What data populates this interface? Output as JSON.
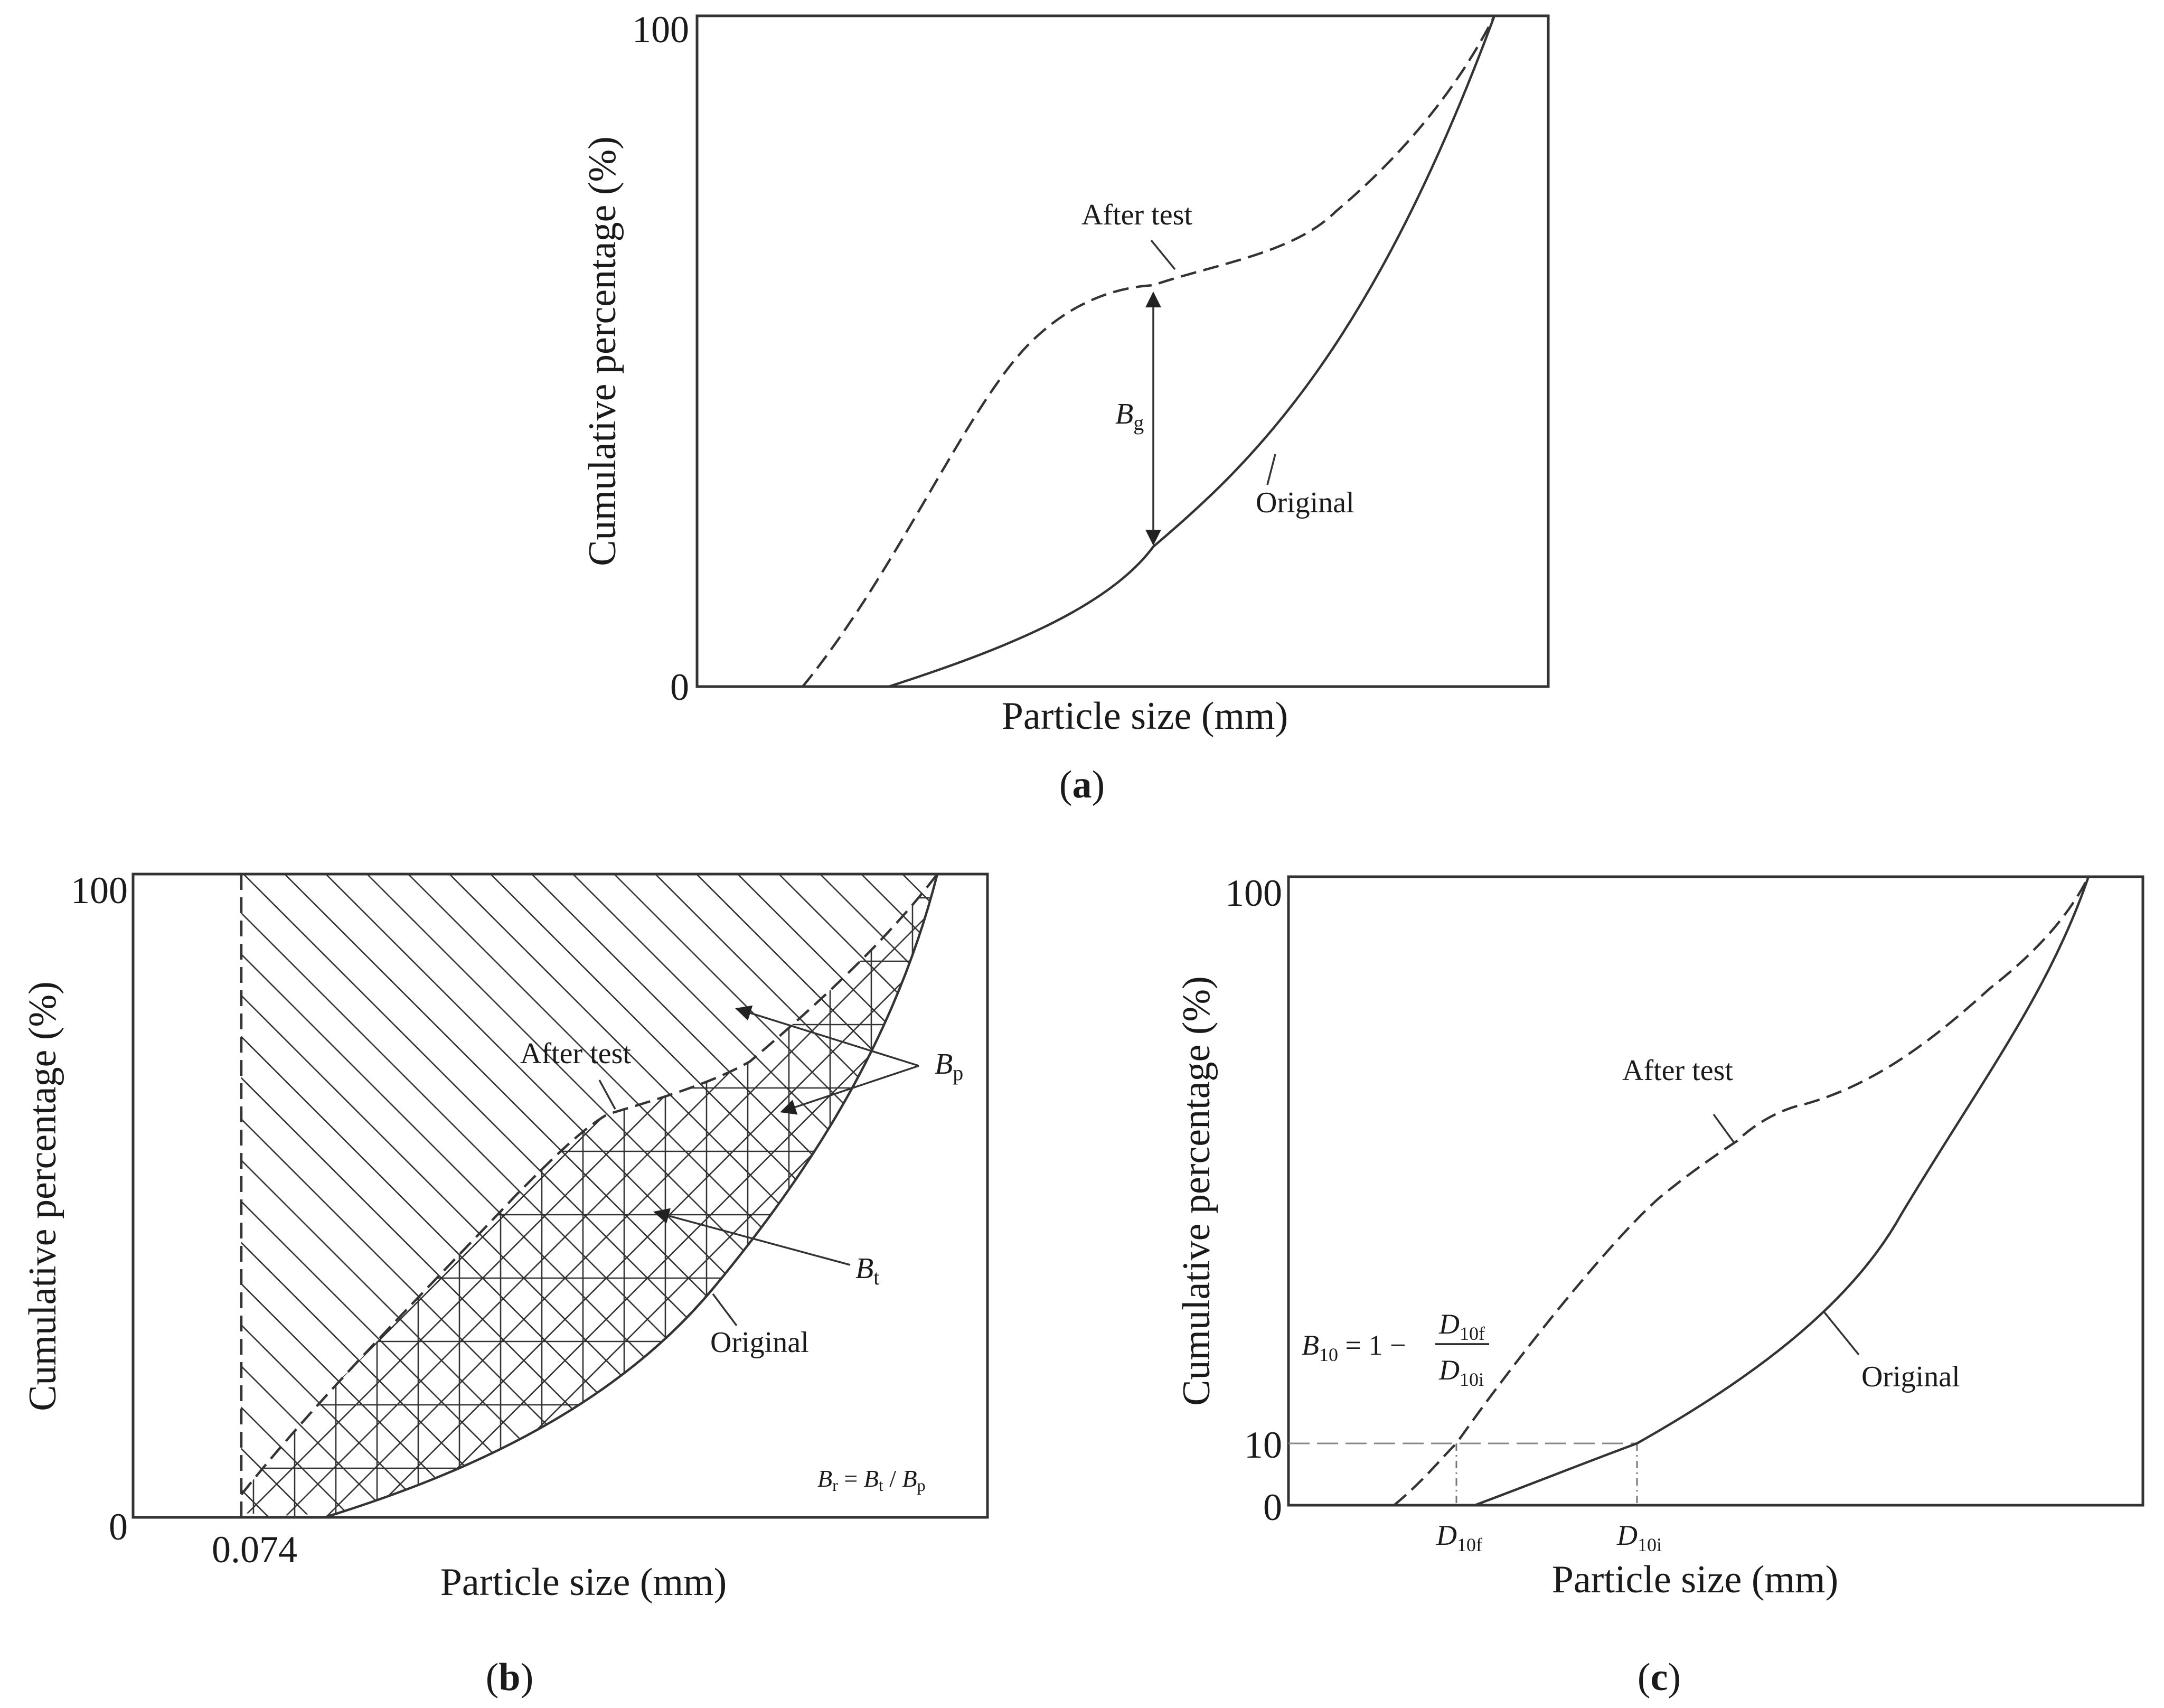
{
  "panel_a": {
    "y_axis_label": "Cumulative percentage (%)",
    "x_axis_label": "Particle size (mm)",
    "y_top_tick": "100",
    "y_bottom_tick": "0",
    "after_test_label": "After test",
    "original_label": "Original",
    "bg_symbol": "B",
    "bg_sub": "g",
    "caption_letter": "a"
  },
  "panel_b": {
    "y_axis_label": "Cumulative percentage (%)",
    "x_axis_label": "Particle size (mm)",
    "y_top_tick": "100",
    "y_bottom_tick": "0",
    "x_tick": "0.074",
    "after_test_label": "After test",
    "original_label": "Original",
    "bp_symbol": "B",
    "bp_sub": "p",
    "bt_symbol": "B",
    "bt_sub": "t",
    "formula": {
      "br": "B",
      "br_sub": "r",
      "eq": " = ",
      "bt": "B",
      "bt_sub": "t",
      "slash": " / ",
      "bp": "B",
      "bp_sub": "p"
    },
    "caption_letter": "b"
  },
  "panel_c": {
    "y_axis_label": "Cumulative percentage (%)",
    "x_axis_label": "Particle size (mm)",
    "y_top_tick": "100",
    "y_mid_tick": "10",
    "y_bottom_tick": "0",
    "after_test_label": "After test",
    "original_label": "Original",
    "d10f_symbol": "D",
    "d10f_sub": "10f",
    "d10i_symbol": "D",
    "d10i_sub": "10i",
    "formula": {
      "lhs": "B",
      "lhs_sub": "10",
      "eq": " = 1 − ",
      "num": "D",
      "num_sub": "10f",
      "den": "D",
      "den_sub": "10i"
    },
    "caption_letter": "c"
  }
}
